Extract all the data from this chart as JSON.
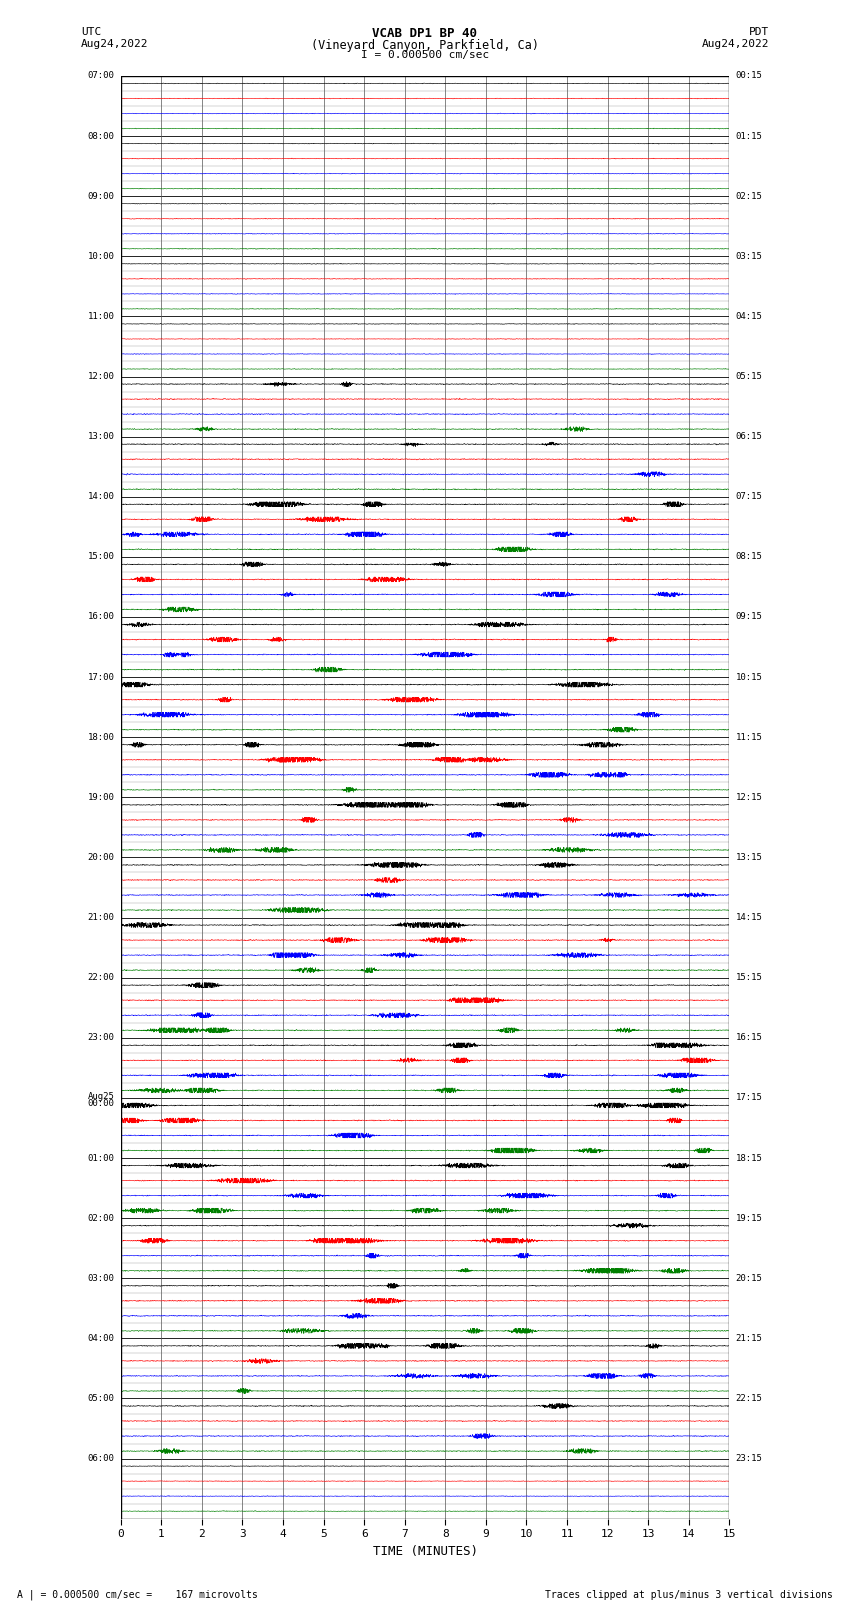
{
  "title_line1": "VCAB DP1 BP 40",
  "title_line2": "(Vineyard Canyon, Parkfield, Ca)",
  "scale_label": "I = 0.000500 cm/sec",
  "left_label": "UTC",
  "right_label": "PDT",
  "left_date": "Aug24,2022",
  "right_date": "Aug24,2022",
  "bottom_xlabel": "TIME (MINUTES)",
  "bottom_note_left": "A | = 0.000500 cm/sec =    167 microvolts",
  "bottom_note_right": "Traces clipped at plus/minus 3 vertical divisions",
  "xlim": [
    0,
    15
  ],
  "xticks": [
    0,
    1,
    2,
    3,
    4,
    5,
    6,
    7,
    8,
    9,
    10,
    11,
    12,
    13,
    14,
    15
  ],
  "n_hours": 24,
  "traces_per_hour": 4,
  "colors_per_group": [
    "black",
    "red",
    "blue",
    "green"
  ],
  "left_times_hours": [
    "07:00",
    "08:00",
    "09:00",
    "10:00",
    "11:00",
    "12:00",
    "13:00",
    "14:00",
    "15:00",
    "16:00",
    "17:00",
    "18:00",
    "19:00",
    "20:00",
    "21:00",
    "22:00",
    "23:00",
    "Aug25\n00:00",
    "01:00",
    "02:00",
    "03:00",
    "04:00",
    "05:00",
    "06:00"
  ],
  "right_times_hours": [
    "00:15",
    "01:15",
    "02:15",
    "03:15",
    "04:15",
    "05:15",
    "06:15",
    "07:15",
    "08:15",
    "09:15",
    "10:15",
    "11:15",
    "12:15",
    "13:15",
    "14:15",
    "15:15",
    "16:15",
    "17:15",
    "18:15",
    "19:15",
    "20:15",
    "21:15",
    "22:15",
    "23:15"
  ],
  "background_color": "white",
  "seed": 42,
  "noise_base": 0.04,
  "trace_scale": 0.38,
  "clip_val": 0.42
}
